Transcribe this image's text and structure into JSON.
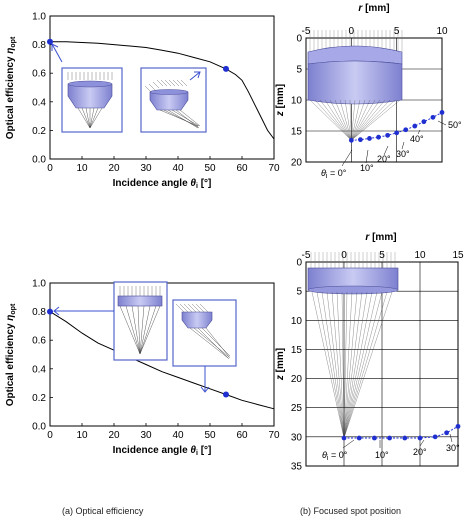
{
  "charts": [
    {
      "name": "efficiency-top",
      "type": "line",
      "xlabel": "Incidence angle θi [°]",
      "xlabel_main": "Incidence angle ",
      "xlabel_sym": "θ",
      "xlabel_sub": "i",
      "xlabel_unit": " [°]",
      "ylabel_main": "Optical efficiency ",
      "ylabel_sym": "η",
      "ylabel_sub": "opt",
      "xlim": [
        0,
        70
      ],
      "ylim": [
        0,
        1.0
      ],
      "x_ticks": [
        "0",
        "10",
        "20",
        "30",
        "40",
        "50",
        "60",
        "70"
      ],
      "y_ticks": [
        "0.0",
        "0.2",
        "0.4",
        "0.6",
        "0.8",
        "1.0"
      ],
      "series": [
        {
          "x": [
            0,
            5,
            10,
            15,
            20,
            25,
            30,
            35,
            40,
            45,
            50,
            55,
            58,
            60,
            62,
            64,
            66,
            68,
            70
          ],
          "y": [
            0.82,
            0.82,
            0.815,
            0.81,
            0.8,
            0.79,
            0.78,
            0.76,
            0.74,
            0.71,
            0.68,
            0.63,
            0.59,
            0.55,
            0.47,
            0.38,
            0.29,
            0.2,
            0.14
          ]
        }
      ],
      "markers": [
        {
          "x": 0,
          "y": 0.82
        },
        {
          "x": 55,
          "y": 0.63
        }
      ]
    },
    {
      "name": "efficiency-bottom",
      "type": "line",
      "xlabel": "Incidence angle θi [°]",
      "xlabel_main": "Incidence angle ",
      "xlabel_sym": "θ",
      "xlabel_sub": "i",
      "xlabel_unit": " [°]",
      "ylabel_main": "Optical efficiency ",
      "ylabel_sym": "η",
      "ylabel_sub": "opt",
      "xlim": [
        0,
        70
      ],
      "ylim": [
        0,
        1.0
      ],
      "x_ticks": [
        "0",
        "10",
        "20",
        "30",
        "40",
        "50",
        "60",
        "70"
      ],
      "y_ticks": [
        "0.0",
        "0.2",
        "0.4",
        "0.6",
        "0.8",
        "1.0"
      ],
      "series": [
        {
          "x": [
            0,
            5,
            10,
            15,
            20,
            25,
            30,
            35,
            40,
            45,
            50,
            55,
            60,
            65,
            70
          ],
          "y": [
            0.8,
            0.73,
            0.65,
            0.58,
            0.53,
            0.48,
            0.43,
            0.38,
            0.34,
            0.3,
            0.26,
            0.22,
            0.18,
            0.15,
            0.12
          ]
        }
      ],
      "markers": [
        {
          "x": 0,
          "y": 0.8
        },
        {
          "x": 55,
          "y": 0.22
        }
      ]
    },
    {
      "name": "spot-top",
      "type": "scatter",
      "xlabel_main": "r",
      "xlabel_unit": " [mm]",
      "ylabel_main": "z",
      "ylabel_unit": " [mm]",
      "xlim": [
        -5,
        10
      ],
      "ylim": [
        0,
        20
      ],
      "x_ticks": [
        "-5",
        "0",
        "5",
        "10"
      ],
      "y_ticks": [
        "0",
        "5",
        "10",
        "15",
        "20"
      ],
      "points": [
        {
          "r": 0,
          "z": 16.5
        },
        {
          "r": 1,
          "z": 16.4
        },
        {
          "r": 2,
          "z": 16.2
        },
        {
          "r": 3,
          "z": 16.0
        },
        {
          "r": 4,
          "z": 15.7
        },
        {
          "r": 5,
          "z": 15.3
        },
        {
          "r": 6,
          "z": 14.8
        },
        {
          "r": 7,
          "z": 14.2
        },
        {
          "r": 8,
          "z": 13.5
        },
        {
          "r": 9,
          "z": 12.8
        },
        {
          "r": 10,
          "z": 12.0
        }
      ],
      "angle_labels": [
        "θi = 0°",
        "10°",
        "20°",
        "30°",
        "40°",
        "50°"
      ],
      "angle_sym": "θ",
      "angle_sub": "i",
      "angle_rest": " = 0°"
    },
    {
      "name": "spot-bottom",
      "type": "scatter",
      "xlabel_main": "r",
      "xlabel_unit": " [mm]",
      "ylabel_main": "z",
      "ylabel_unit": " [mm]",
      "xlim": [
        -5,
        15
      ],
      "ylim": [
        0,
        35
      ],
      "x_ticks": [
        "-5",
        "0",
        "5",
        "10",
        "15"
      ],
      "y_ticks": [
        "0",
        "5",
        "10",
        "15",
        "20",
        "25",
        "30",
        "35"
      ],
      "points": [
        {
          "r": 0,
          "z": 30.2
        },
        {
          "r": 2,
          "z": 30.2
        },
        {
          "r": 4,
          "z": 30.2
        },
        {
          "r": 6,
          "z": 30.2
        },
        {
          "r": 8,
          "z": 30.2
        },
        {
          "r": 10,
          "z": 30.2
        },
        {
          "r": 12,
          "z": 30.0
        },
        {
          "r": 13.5,
          "z": 29.3
        },
        {
          "r": 15,
          "z": 28.2
        }
      ],
      "angle_labels": [
        "θi = 0°",
        "10°",
        "20°",
        "30°"
      ],
      "angle_sym": "θ",
      "angle_sub": "i",
      "angle_rest": " = 0°"
    }
  ],
  "captions": {
    "left": "(a) Optical efficiency",
    "right": "(b) Focused spot position"
  },
  "colors": {
    "marker": "#1f2fd0",
    "inset_border": "#5566cc",
    "lens_body": "#a9abe6",
    "lens_dark": "#5a5ca8"
  }
}
